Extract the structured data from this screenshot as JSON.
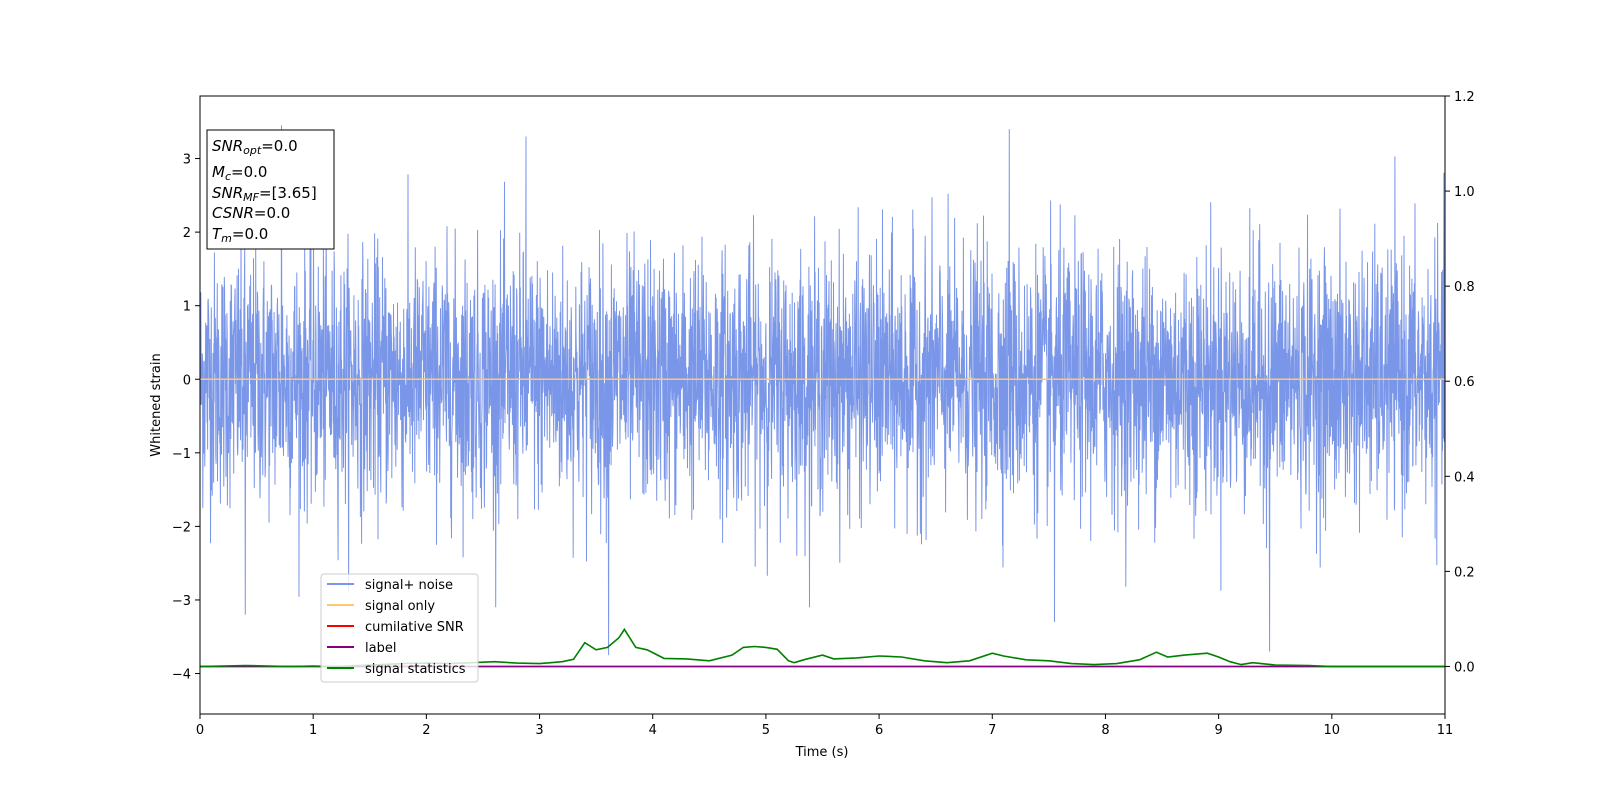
{
  "chart_data": {
    "type": "line",
    "xlabel": "Time (s)",
    "ylabel": "Whitened strain",
    "xlim": [
      0,
      11
    ],
    "ylim_left": [
      -4.55,
      3.85
    ],
    "ylim_right": [
      -0.1,
      1.2
    ],
    "x_ticks": [
      "0",
      "1",
      "2",
      "3",
      "4",
      "5",
      "6",
      "7",
      "8",
      "9",
      "10",
      "11"
    ],
    "y_ticks_left": [
      "3",
      "2",
      "1",
      "0",
      "−1",
      "−2",
      "−3",
      "−4"
    ],
    "y_ticks_right": [
      "1.2",
      "1.0",
      "0.8",
      "0.6",
      "0.4",
      "0.2",
      "0.0"
    ],
    "info_box": {
      "snr_opt_sym": "SNR",
      "snr_opt_sub": "opt",
      "snr_opt_val": "=0.0",
      "mc_sym": "M",
      "mc_sub": "c",
      "mc_val": "=0.0",
      "snr_mf_sym": "SNR",
      "snr_mf_sub": "MF",
      "snr_mf_val": "=[3.65]",
      "csnr_sym": "CSNR",
      "csnr_val": "=0.0",
      "tm_sym": "T",
      "tm_sub": "m",
      "tm_val": "=0.0"
    },
    "series": [
      {
        "name": "signal+ noise",
        "color": "#7a96e8",
        "axis": "left",
        "description_values": "whitened noise, roughly uniform envelope",
        "noise_band": [
          -1.5,
          1.6
        ],
        "peaks_x": [
          0.72,
          2.88,
          7.15,
          3.61,
          9.45,
          7.55,
          0.4
        ],
        "peaks_y": [
          3.45,
          3.3,
          3.4,
          -3.75,
          -3.7,
          -3.3,
          -3.2
        ]
      },
      {
        "name": "signal only",
        "color": "#ffc870",
        "axis": "left",
        "x": [
          0,
          11
        ],
        "y": [
          0,
          0
        ]
      },
      {
        "name": "cumilative SNR",
        "color": "#ff0000",
        "axis": "right",
        "x": [
          0,
          11
        ],
        "y": [
          0,
          0
        ]
      },
      {
        "name": "label",
        "color": "#800080",
        "axis": "right",
        "x": [
          0,
          11
        ],
        "y": [
          0,
          0
        ]
      },
      {
        "name": "signal statistics",
        "color": "#008000",
        "axis": "right",
        "x": [
          0,
          0.2,
          0.4,
          0.6,
          0.8,
          1.0,
          1.2,
          1.4,
          1.6,
          1.8,
          2.0,
          2.2,
          2.4,
          2.6,
          2.8,
          3.0,
          3.1,
          3.2,
          3.3,
          3.4,
          3.5,
          3.6,
          3.7,
          3.75,
          3.85,
          3.95,
          4.1,
          4.3,
          4.5,
          4.7,
          4.8,
          4.9,
          5.0,
          5.1,
          5.2,
          5.25,
          5.35,
          5.5,
          5.6,
          5.8,
          6.0,
          6.2,
          6.4,
          6.6,
          6.8,
          7.0,
          7.1,
          7.3,
          7.5,
          7.7,
          7.9,
          8.1,
          8.3,
          8.45,
          8.55,
          8.7,
          8.9,
          9.0,
          9.1,
          9.2,
          9.3,
          9.5,
          9.8,
          10.0,
          10.3,
          10.6,
          11.0
        ],
        "y": [
          0.0,
          0.001,
          0.002,
          0.001,
          0.0,
          0.001,
          0.0,
          0.002,
          0.004,
          0.006,
          0.007,
          0.006,
          0.008,
          0.01,
          0.007,
          0.006,
          0.008,
          0.01,
          0.015,
          0.05,
          0.035,
          0.04,
          0.06,
          0.078,
          0.04,
          0.035,
          0.017,
          0.016,
          0.012,
          0.024,
          0.04,
          0.042,
          0.04,
          0.036,
          0.012,
          0.008,
          0.015,
          0.024,
          0.016,
          0.018,
          0.022,
          0.02,
          0.012,
          0.008,
          0.012,
          0.028,
          0.022,
          0.014,
          0.012,
          0.006,
          0.004,
          0.006,
          0.014,
          0.03,
          0.02,
          0.024,
          0.028,
          0.02,
          0.01,
          0.004,
          0.008,
          0.003,
          0.002,
          0.0,
          0.0,
          0.0,
          0.0
        ]
      }
    ],
    "legend_position": "lower left"
  }
}
